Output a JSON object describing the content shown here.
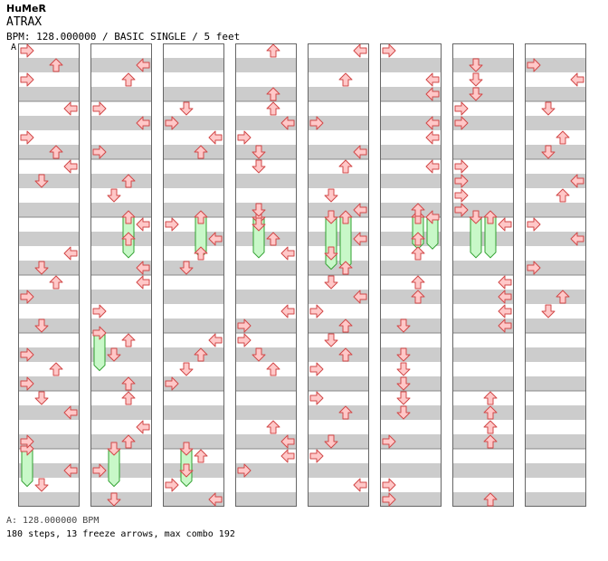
{
  "header": {
    "artist": "HuMeR",
    "title": "ATRAX",
    "info": "BPM: 128.000000 / BASIC SINGLE / 5 feet",
    "bpm_marker": "A"
  },
  "footer": {
    "bpm_line": "A: 128.000000 BPM",
    "stats": "180 steps, 13 freeze arrows, max combo 192"
  },
  "colors": {
    "arrow_fill": "#ffc8c8",
    "arrow_stroke": "#d24848",
    "freeze_fill": "#c8f8c8",
    "freeze_stroke": "#30a030",
    "stripe": "#cccccc"
  },
  "chart_data": {
    "type": "step-chart",
    "lanes": [
      "left",
      "down",
      "up",
      "right"
    ],
    "columns": 8,
    "measures_per_column": 8,
    "freezes": [
      {
        "col": 1,
        "lane": 2,
        "start": 3.0,
        "end": 3.7
      },
      {
        "col": 2,
        "lane": 2,
        "start": 3.0,
        "end": 3.7
      },
      {
        "col": 3,
        "lane": 1,
        "start": 3.0,
        "end": 3.7
      },
      {
        "col": 4,
        "lane": 1,
        "start": 3.0,
        "end": 3.9
      },
      {
        "col": 4,
        "lane": 2,
        "start": 3.0,
        "end": 3.9
      },
      {
        "col": 5,
        "lane": 2,
        "start": 3.0,
        "end": 3.55
      },
      {
        "col": 5,
        "lane": 3,
        "start": 3.0,
        "end": 3.55
      },
      {
        "col": 6,
        "lane": 1,
        "start": 3.0,
        "end": 3.7
      },
      {
        "col": 6,
        "lane": 2,
        "start": 3.0,
        "end": 3.7
      },
      {
        "col": 1,
        "lane": 0,
        "start": 5.0,
        "end": 5.65
      },
      {
        "col": 0,
        "lane": 0,
        "start": 7.0,
        "end": 7.65
      },
      {
        "col": 1,
        "lane": 1,
        "start": 7.0,
        "end": 7.65
      },
      {
        "col": 2,
        "lane": 1,
        "start": 7.0,
        "end": 7.65
      }
    ],
    "arrows": [
      [
        2,
        0,
        0.125
      ],
      [
        1,
        0,
        0.375
      ],
      [
        2,
        0,
        0.625
      ],
      [
        0,
        0,
        1.625
      ],
      [
        1,
        0,
        1.375
      ],
      [
        0,
        0,
        1.625
      ],
      [
        0,
        1,
        0.125
      ],
      [
        3,
        1,
        0.375
      ],
      [
        1,
        1,
        0.625
      ],
      [
        2,
        1,
        1.125
      ],
      [
        3,
        1,
        1.375
      ],
      [
        0,
        1,
        1.625
      ]
    ]
  }
}
